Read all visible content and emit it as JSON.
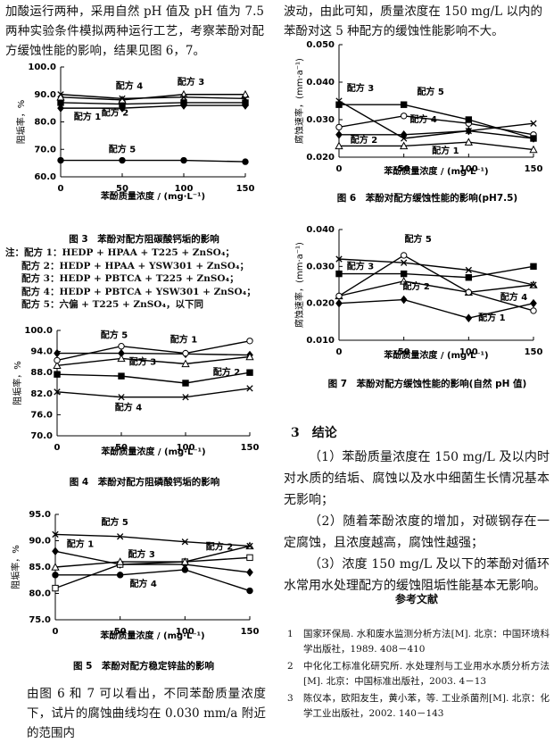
{
  "text": {
    "intro_left": "加酸运行两种，采用自然 pH 值及 pH 值为 7.5 两种实验条件模拟两种运行工艺，考察苯酚对配方缓蚀性能的影响，结果见图 6，7。",
    "notes": [
      "注：配方 1：HEDP + HPAA + T225 + ZnSO₄；",
      "配方 2：HEDP + HPAA + YSW301 + ZnSO₄；",
      "配方 3：HEDP + PBTCA + T225 + ZnSO₄；",
      "配方 4：HEDP + PBTCA + YSW301 + ZnSO₄；",
      "配方 5：六偏 + T225 + ZnSO₄，以下同"
    ],
    "body_left": "由图 6 和 7 可以看出，不同苯酚质量浓度下，试片的腐蚀曲线均在 0.030 mm/a 附近的范围内",
    "body_right": "波动，由此可知，质量浓度在 150 mg/L 以内的苯酚对这 5 种配方的缓蚀性能影响不大。",
    "section_title": "3　结论",
    "conclusions": [
      "（1）苯酚质量浓度在 150 mg/L 及以内时对水质的结垢、腐蚀以及水中细菌生长情况基本无影响；",
      "（2）随着苯酚浓度的增加，对碳钢存在一定腐蚀，且浓度越高，腐蚀性越强；",
      "（3）浓度 150 mg/L 及以下的苯酚对循环水常用水处理配方的缓蚀阻垢性能基本无影响。"
    ],
    "references_title": "参考文献",
    "references": [
      {
        "num": "1",
        "text": "国家环保局. 水和废水监测分析方法[M]. 北京：中国环境科学出版社，1989. 408－410"
      },
      {
        "num": "2",
        "text": "中化化工标准化研究所. 水处理剂与工业用水水质分析方法[M]. 北京：中国标准出版社，2003. 4－13"
      },
      {
        "num": "3",
        "text": "陈仪本，欧阳友生，黄小苯，等. 工业杀菌剂[M]. 北京：化学工业出版社，2002. 140－143"
      }
    ]
  },
  "chart_data": [
    {
      "type": "line",
      "title": "图 3　苯酚对配方阻碳酸钙垢的影响",
      "x_label": "苯酚质量浓度 / (mg·L⁻¹)",
      "y_label": "阻垢率，%",
      "x": [
        0,
        50,
        100,
        150
      ],
      "xlim": [
        0,
        150
      ],
      "xticks": [
        0,
        50,
        100,
        150
      ],
      "ylim": [
        60,
        100
      ],
      "yticks": [
        {
          "value": 60,
          "label": "60.0"
        },
        {
          "value": 70,
          "label": "70.0"
        },
        {
          "value": 80,
          "label": "80.0"
        },
        {
          "value": 90,
          "label": "90.0"
        },
        {
          "value": 100,
          "label": "100.0"
        }
      ],
      "series": [
        {
          "name": "配方 1",
          "color": "#000",
          "marker": "diamond",
          "filled": true,
          "values": [
            85,
            85,
            86,
            86
          ]
        },
        {
          "name": "配方 2",
          "color": "#000",
          "marker": "square",
          "filled": true,
          "values": [
            87,
            86.5,
            87,
            87
          ]
        },
        {
          "name": "配方 3",
          "color": "#000",
          "marker": "triangle",
          "filled": false,
          "values": [
            89,
            88,
            90,
            90
          ]
        },
        {
          "name": "配方 4",
          "color": "#000",
          "marker": "cross",
          "filled": false,
          "values": [
            90,
            88.5,
            89,
            88.5
          ]
        },
        {
          "name": "配方 5",
          "color": "#000",
          "marker": "circle",
          "filled": true,
          "values": [
            66,
            66,
            66,
            65.5
          ]
        }
      ]
    },
    {
      "type": "line",
      "title": "图 4　苯酚对配方阻磷酸钙垢的影响",
      "x_label": "苯酚质量浓度 / (mg·L⁻¹)",
      "y_label": "阻垢率，%",
      "x": [
        0,
        50,
        100,
        150
      ],
      "xlim": [
        0,
        150
      ],
      "xticks": [
        0,
        50,
        100,
        150
      ],
      "ylim": [
        70,
        100
      ],
      "yticks": [
        {
          "value": 70,
          "label": "70.0"
        },
        {
          "value": 76,
          "label": "76.0"
        },
        {
          "value": 82,
          "label": "82.0"
        },
        {
          "value": 88,
          "label": "88.0"
        },
        {
          "value": 94,
          "label": "94.0"
        },
        {
          "value": 100,
          "label": "100.0"
        }
      ],
      "series": [
        {
          "name": "配方 1",
          "color": "#000",
          "marker": "diamond",
          "filled": true,
          "values": [
            93.5,
            93.5,
            93.3,
            93
          ]
        },
        {
          "name": "配方 2",
          "color": "#000",
          "marker": "square",
          "filled": true,
          "values": [
            87.5,
            87,
            85,
            88
          ]
        },
        {
          "name": "配方 3",
          "color": "#000",
          "marker": "triangle",
          "filled": false,
          "values": [
            90,
            92,
            90.5,
            92.5
          ]
        },
        {
          "name": "配方 4",
          "color": "#000",
          "marker": "cross",
          "filled": false,
          "values": [
            82.5,
            81,
            81,
            83.5
          ]
        },
        {
          "name": "配方 5",
          "color": "#000",
          "marker": "circle",
          "filled": false,
          "values": [
            91.5,
            95.5,
            93.5,
            97
          ]
        }
      ]
    },
    {
      "type": "line",
      "title": "图 5　苯酚对配方稳定锌盐的影响",
      "x_label": "苯酚质量浓度 / (mg·L⁻¹)",
      "y_label": "阻垢率，%",
      "x": [
        0,
        50,
        100,
        150
      ],
      "xlim": [
        0,
        150
      ],
      "xticks": [
        0,
        50,
        100,
        150
      ],
      "ylim": [
        75,
        95
      ],
      "yticks": [
        {
          "value": 75,
          "label": "75.0"
        },
        {
          "value": 80,
          "label": "80.0"
        },
        {
          "value": 85,
          "label": "85.0"
        },
        {
          "value": 90,
          "label": "90.0"
        },
        {
          "value": 95,
          "label": "95.0"
        }
      ],
      "series": [
        {
          "name": "配方 1",
          "color": "#000",
          "marker": "diamond",
          "filled": true,
          "values": [
            88,
            85.5,
            85.5,
            84
          ]
        },
        {
          "name": "配方 2",
          "color": "#000",
          "marker": "square",
          "filled": false,
          "values": [
            81,
            85.5,
            86,
            86.8
          ]
        },
        {
          "name": "配方 3",
          "color": "#000",
          "marker": "triangle",
          "filled": false,
          "values": [
            85,
            86,
            86,
            89
          ]
        },
        {
          "name": "配方 4",
          "color": "#000",
          "marker": "circle",
          "filled": true,
          "values": [
            83.5,
            83.5,
            84.5,
            80.5
          ]
        },
        {
          "name": "配方 5",
          "color": "#000",
          "marker": "cross",
          "filled": false,
          "values": [
            91.2,
            90.8,
            89.8,
            89
          ]
        }
      ]
    },
    {
      "type": "line",
      "title": "图 6　苯酚对配方缓蚀性能的影响(pH7.5)",
      "x_label": "苯酚质量浓度 / (mg·L⁻¹)",
      "y_label": "腐蚀速率，(mm·a⁻¹)",
      "x": [
        0,
        50,
        100,
        150
      ],
      "xlim": [
        0,
        150
      ],
      "xticks": [
        0,
        50,
        100,
        150
      ],
      "ylim": [
        0.02,
        0.05
      ],
      "yticks": [
        {
          "value": 0.02,
          "label": "0.020"
        },
        {
          "value": 0.03,
          "label": "0.030"
        },
        {
          "value": 0.04,
          "label": "0.040"
        },
        {
          "value": 0.05,
          "label": "0.050"
        }
      ],
      "series": [
        {
          "name": "配方 1",
          "color": "#000",
          "marker": "triangle",
          "filled": false,
          "values": [
            0.023,
            0.023,
            0.024,
            0.022
          ]
        },
        {
          "name": "配方 2",
          "color": "#000",
          "marker": "diamond",
          "filled": true,
          "values": [
            0.026,
            0.026,
            0.027,
            0.025
          ]
        },
        {
          "name": "配方 3",
          "color": "#000",
          "marker": "cross",
          "filled": false,
          "values": [
            0.035,
            0.025,
            0.027,
            0.029
          ]
        },
        {
          "name": "配方 4",
          "color": "#000",
          "marker": "circle",
          "filled": false,
          "values": [
            0.028,
            0.031,
            0.029,
            0.026
          ]
        },
        {
          "name": "配方 5",
          "color": "#000",
          "marker": "square",
          "filled": true,
          "values": [
            0.034,
            0.034,
            0.03,
            0.025
          ]
        }
      ]
    },
    {
      "type": "line",
      "title": "图 7　苯酚对配方缓蚀性能的影响(自然 pH 值)",
      "x_label": "苯酚质量浓度 / (mg·L⁻¹)",
      "y_label": "腐蚀速率，(mm·a⁻¹)",
      "x": [
        0,
        50,
        100,
        150
      ],
      "xlim": [
        0,
        150
      ],
      "xticks": [
        0,
        50,
        100,
        150
      ],
      "ylim": [
        0.01,
        0.04
      ],
      "yticks": [
        {
          "value": 0.01,
          "label": "0.010"
        },
        {
          "value": 0.02,
          "label": "0.020"
        },
        {
          "value": 0.03,
          "label": "0.030"
        },
        {
          "value": 0.04,
          "label": "0.040"
        }
      ],
      "series": [
        {
          "name": "配方 1",
          "color": "#000",
          "marker": "diamond",
          "filled": true,
          "values": [
            0.02,
            0.021,
            0.016,
            0.02
          ]
        },
        {
          "name": "配方 2",
          "color": "#000",
          "marker": "triangle",
          "filled": false,
          "values": [
            0.022,
            0.026,
            0.023,
            0.025
          ]
        },
        {
          "name": "配方 3",
          "color": "#000",
          "marker": "square",
          "filled": true,
          "values": [
            0.028,
            0.028,
            0.027,
            0.03
          ]
        },
        {
          "name": "配方 4",
          "color": "#000",
          "marker": "cross",
          "filled": false,
          "values": [
            0.032,
            0.031,
            0.029,
            0.025
          ]
        },
        {
          "name": "配方 5",
          "color": "#000",
          "marker": "circle",
          "filled": false,
          "values": [
            0.022,
            0.033,
            0.023,
            0.018
          ]
        }
      ]
    }
  ]
}
